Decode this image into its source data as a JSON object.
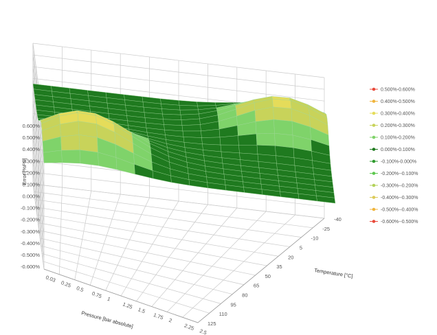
{
  "chart_data": {
    "type": "surface",
    "title": "",
    "xlabel": "Pressure [bar absolute]",
    "ylabel": "Temperature [°C]",
    "zlabel": "Error [%FS]",
    "x_ticks": [
      "0.03",
      "0.25",
      "0.5",
      "0.75",
      "1",
      "1.25",
      "1.5",
      "1.75",
      "2",
      "2.25",
      "2.5"
    ],
    "y_ticks": [
      "-40",
      "-25",
      "-10",
      "5",
      "20",
      "35",
      "50",
      "65",
      "80",
      "95",
      "110",
      "125"
    ],
    "z_ticks": [
      "0.600%",
      "0.500%",
      "0.400%",
      "0.300%",
      "0.200%",
      "0.100%",
      "0.000%",
      "-0.100%",
      "-0.200%",
      "-0.300%",
      "-0.400%",
      "-0.500%",
      "-0.600%"
    ],
    "zlim": [
      -0.6,
      0.6
    ],
    "legend_position": "right",
    "legend": [
      {
        "label": "0.500%-0.600%",
        "color": "#e8493a"
      },
      {
        "label": "0.400%-0.500%",
        "color": "#f0b43c"
      },
      {
        "label": "0.300%-0.400%",
        "color": "#e5dc5a"
      },
      {
        "label": "0.200%-0.300%",
        "color": "#c8d35a"
      },
      {
        "label": "0.100%-0.200%",
        "color": "#7fd36a"
      },
      {
        "label": "0.000%-0.100%",
        "color": "#1f7a1f"
      },
      {
        "label": "-0.100%-0.000%",
        "color": "#2e9a2e"
      },
      {
        "label": "-0.200%--0.100%",
        "color": "#5cc84e"
      },
      {
        "label": "-0.300%--0.200%",
        "color": "#b3d25a"
      },
      {
        "label": "-0.400%--0.300%",
        "color": "#dccb5a"
      },
      {
        "label": "-0.500%--0.400%",
        "color": "#f0b43c"
      },
      {
        "label": "-0.600%--0.500%",
        "color": "#e8493a"
      }
    ]
  }
}
